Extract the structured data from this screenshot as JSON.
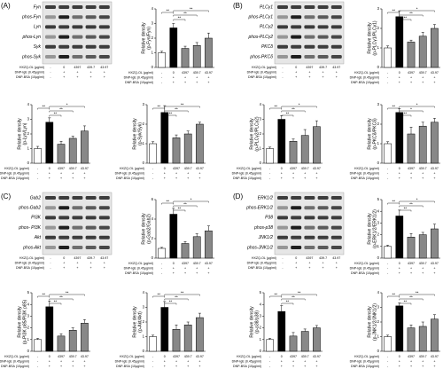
{
  "conditions": [
    {
      "label": "HXZQ-OL (μg/ml)",
      "values": [
        "-",
        "0",
        "4397",
        "439.7",
        "43.97"
      ]
    },
    {
      "label": "DNP-IgE (0.45μg/ml)",
      "values": [
        "-",
        "+",
        "+",
        "+",
        "+"
      ]
    },
    {
      "label": "DNP-BSA (10μg/ml)",
      "values": [
        "-",
        "+",
        "+",
        "+",
        "+"
      ]
    }
  ],
  "panels": [
    {
      "label": "(A)",
      "blots": [
        "Fyn",
        "phos-Fyn",
        "Lyn",
        "phos-Lyn",
        "Syk",
        "phos-Syk"
      ]
    },
    {
      "label": "(B)",
      "blots": [
        "PLCγ1",
        "phos-PLCγ1",
        "PLCγ2",
        "phos-PLCγ2",
        "PKCδ",
        "phos-PKCδ"
      ]
    },
    {
      "label": "(C)",
      "blots": [
        "Gab2",
        "phos-Gab2",
        "PI3K",
        "phos- PI3K",
        "Akt",
        "phos-Akt"
      ]
    },
    {
      "label": "(D)",
      "blots": [
        "ERK1/2",
        "phos-ERK1/2",
        "P38",
        "phos-p38",
        "JNK1/2",
        "phos-JNK1/2"
      ]
    }
  ],
  "chart_data": [
    {
      "type": "bar",
      "ylabel": [
        "Relative density",
        "(p-Fyn/Fyn)"
      ],
      "values": [
        1,
        2.7,
        1.3,
        1.5,
        2.0
      ],
      "errors": [
        0.1,
        0.3,
        0.15,
        0.2,
        0.35
      ],
      "colors": [
        "#ffffff",
        "#000000",
        "#888888",
        "#888888",
        "#888888"
      ],
      "ylim": [
        0,
        4
      ],
      "yticks": [
        0,
        1,
        2,
        3,
        4
      ],
      "significance": [
        "**",
        "**",
        "**",
        "**"
      ]
    },
    {
      "type": "bar",
      "ylabel": [
        "Relative density",
        "(p-PLCγ1/PLCγ1)"
      ],
      "values": [
        1,
        2.6,
        1.3,
        1.6,
        2.0
      ],
      "errors": [
        0.1,
        0.3,
        0.1,
        0.2,
        0.2
      ],
      "colors": [
        "#ffffff",
        "#000000",
        "#888888",
        "#888888",
        "#888888"
      ],
      "ylim": [
        0,
        3
      ],
      "yticks": [
        0,
        1,
        2,
        3
      ],
      "significance": [
        "**",
        "**",
        "**",
        "*"
      ]
    },
    {
      "type": "bar",
      "ylabel": [
        "Relative density",
        "(p-Lyn/Lyn)"
      ],
      "values": [
        1,
        2.8,
        1.3,
        1.7,
        2.2
      ],
      "errors": [
        0.15,
        0.3,
        0.2,
        0.15,
        0.35
      ],
      "colors": [
        "#ffffff",
        "#000000",
        "#888888",
        "#888888",
        "#888888"
      ],
      "ylim": [
        0,
        4
      ],
      "yticks": [
        0,
        1,
        2,
        3,
        4
      ],
      "significance": [
        "**",
        "**",
        "**",
        "*"
      ]
    },
    {
      "type": "bar",
      "ylabel": [
        "Relative density",
        "(p-Syk/Syk)"
      ],
      "values": [
        1,
        2.6,
        1.3,
        1.5,
        2.0
      ],
      "errors": [
        0.1,
        0.35,
        0.15,
        0.15,
        0.1
      ],
      "colors": [
        "#ffffff",
        "#000000",
        "#888888",
        "#888888",
        "#888888"
      ],
      "ylim": [
        0,
        3
      ],
      "yticks": [
        0,
        1,
        2,
        3
      ],
      "significance": [
        "**",
        "**",
        "**",
        "**"
      ]
    },
    {
      "type": "bar",
      "ylabel": [
        "Relative density",
        "(p-PLCγ2/PLCγ2)"
      ],
      "values": [
        1,
        3.0,
        1.5,
        1.9,
        2.5
      ],
      "errors": [
        0.1,
        0.25,
        0.15,
        0.4,
        0.4
      ],
      "colors": [
        "#ffffff",
        "#000000",
        "#888888",
        "#888888",
        "#888888"
      ],
      "ylim": [
        0,
        4
      ],
      "yticks": [
        0,
        1,
        2,
        3,
        4
      ],
      "significance": [
        "**",
        "**",
        "**",
        "*"
      ]
    },
    {
      "type": "bar",
      "ylabel": [
        "Relative density",
        "(p-PKCδ/PKCδ)"
      ],
      "values": [
        1,
        2.6,
        1.5,
        1.9,
        2.1
      ],
      "errors": [
        0.1,
        0.2,
        0.35,
        0.2,
        0.2
      ],
      "colors": [
        "#ffffff",
        "#000000",
        "#888888",
        "#888888",
        "#888888"
      ],
      "ylim": [
        0,
        3
      ],
      "yticks": [
        0,
        1,
        2,
        3
      ],
      "significance": [
        "**",
        "**",
        "*",
        "*"
      ]
    },
    {
      "type": "bar",
      "ylabel": [
        "Relative density",
        "(p-Gab2/Gab2)"
      ],
      "values": [
        1,
        4.5,
        1.5,
        2.2,
        2.8
      ],
      "errors": [
        0.1,
        0.6,
        0.2,
        0.3,
        0.5
      ],
      "colors": [
        "#ffffff",
        "#000000",
        "#888888",
        "#888888",
        "#888888"
      ],
      "ylim": [
        0,
        6
      ],
      "yticks": [
        0,
        2,
        4,
        6
      ],
      "significance": [
        "**",
        "**",
        "**",
        "*"
      ]
    },
    {
      "type": "bar",
      "ylabel": [
        "Relative density",
        "(p-ERK1/2/ERK1/2)"
      ],
      "values": [
        1,
        3.6,
        1.8,
        2.0,
        2.5
      ],
      "errors": [
        0.1,
        0.5,
        0.3,
        0.2,
        0.4
      ],
      "colors": [
        "#ffffff",
        "#000000",
        "#888888",
        "#888888",
        "#888888"
      ],
      "ylim": [
        0,
        5
      ],
      "yticks": [
        0,
        1,
        2,
        3,
        4,
        5
      ],
      "significance": [
        "**",
        "**",
        "**",
        "*"
      ]
    },
    {
      "type": "bar",
      "ylabel": [
        "Relative density",
        "(p-PI3K p85/PI3K p85)"
      ],
      "values": [
        1,
        3.8,
        1.3,
        1.8,
        2.4
      ],
      "errors": [
        0.1,
        0.5,
        0.2,
        0.2,
        0.3
      ],
      "colors": [
        "#ffffff",
        "#000000",
        "#888888",
        "#888888",
        "#888888"
      ],
      "ylim": [
        0,
        5
      ],
      "yticks": [
        0,
        1,
        2,
        3,
        4,
        5
      ],
      "significance": [
        "**",
        "**",
        "**",
        "**"
      ]
    },
    {
      "type": "bar",
      "ylabel": [
        "Relative density",
        "(p-Akt/Akt)"
      ],
      "values": [
        1,
        3.0,
        1.5,
        1.8,
        2.3
      ],
      "errors": [
        0.1,
        0.4,
        0.3,
        0.2,
        0.3
      ],
      "colors": [
        "#ffffff",
        "#000000",
        "#888888",
        "#888888",
        "#888888"
      ],
      "ylim": [
        0,
        4
      ],
      "yticks": [
        0,
        1,
        2,
        3,
        4
      ],
      "significance": [
        "**",
        "**",
        "**",
        "**"
      ]
    },
    {
      "type": "bar",
      "ylabel": [
        "Relative density",
        "(p-p38/p38)"
      ],
      "values": [
        1,
        3.4,
        1.3,
        1.7,
        2.0
      ],
      "errors": [
        0.1,
        0.5,
        0.3,
        0.2,
        0.2
      ],
      "colors": [
        "#ffffff",
        "#000000",
        "#888888",
        "#888888",
        "#888888"
      ],
      "ylim": [
        0,
        5
      ],
      "yticks": [
        0,
        1,
        2,
        3,
        4,
        5
      ],
      "significance": [
        "**",
        "**",
        "**",
        "**"
      ]
    },
    {
      "type": "bar",
      "ylabel": [
        "Relative density",
        "(p-JNK1/2/JNK1/2)"
      ],
      "values": [
        1,
        3.1,
        1.6,
        1.7,
        2.2
      ],
      "errors": [
        0.1,
        0.2,
        0.2,
        0.3,
        0.3
      ],
      "colors": [
        "#ffffff",
        "#000000",
        "#888888",
        "#888888",
        "#888888"
      ],
      "ylim": [
        0,
        4
      ],
      "yticks": [
        0,
        1,
        2,
        3,
        4
      ],
      "significance": [
        "**",
        "**",
        "**",
        "**"
      ]
    }
  ]
}
